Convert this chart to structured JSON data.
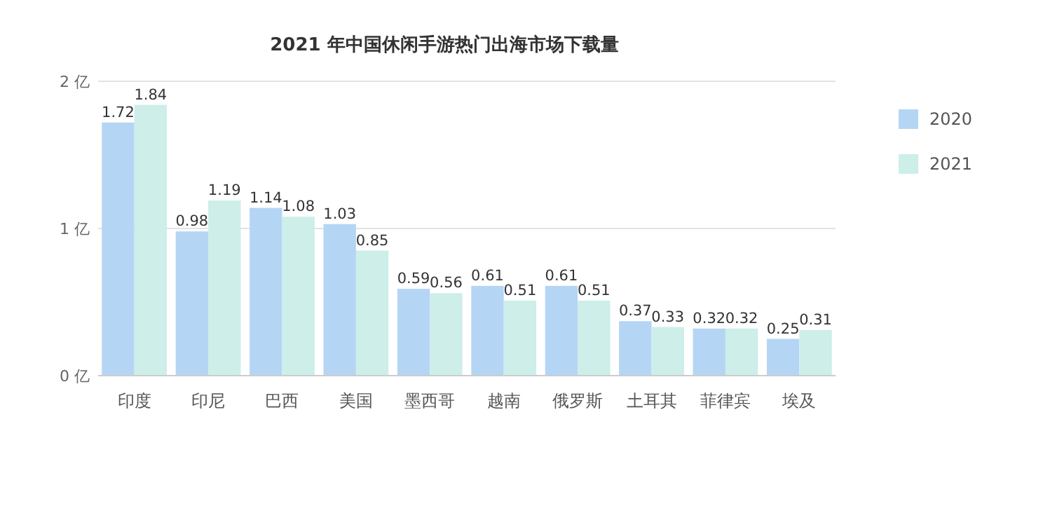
{
  "chart_data": {
    "type": "bar",
    "title": "2021 年中国休闲手游热门出海市场下载量",
    "categories": [
      "印度",
      "印尼",
      "巴西",
      "美国",
      "墨西哥",
      "越南",
      "俄罗斯",
      "土耳其",
      "菲律宾",
      "埃及"
    ],
    "series": [
      {
        "name": "2020",
        "color": "#b5d5f5",
        "values": [
          1.72,
          0.98,
          1.14,
          1.03,
          0.59,
          0.61,
          0.61,
          0.37,
          0.32,
          0.25
        ]
      },
      {
        "name": "2021",
        "color": "#cdeee9",
        "values": [
          1.84,
          1.19,
          1.08,
          0.85,
          0.56,
          0.51,
          0.51,
          0.33,
          0.32,
          0.31
        ]
      }
    ],
    "ylim": [
      0,
      2
    ],
    "yticks": [
      {
        "value": 0,
        "label": "0 亿"
      },
      {
        "value": 1,
        "label": "1 亿"
      },
      {
        "value": 2,
        "label": "2 亿"
      }
    ],
    "grid": "y",
    "legend": "right",
    "data_labels": true
  }
}
